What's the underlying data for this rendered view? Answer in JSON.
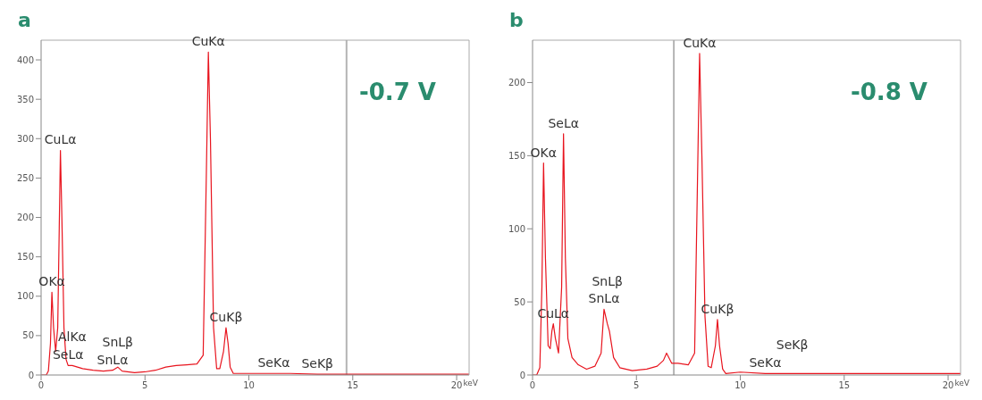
{
  "chart_data": [
    {
      "type": "line",
      "title": "a",
      "xlabel": "keV",
      "xlim": [
        0,
        20.6
      ],
      "xticks": [
        0,
        5,
        10,
        15,
        20
      ],
      "ylim": [
        0,
        425
      ],
      "yticks": [
        0,
        50,
        100,
        150,
        200,
        250,
        300,
        350,
        400
      ],
      "grid": false,
      "legend": false,
      "marker": "none",
      "line_style": "solid",
      "series": [
        {
          "color": "#e8141e",
          "x": [
            0,
            0.25,
            0.35,
            0.45,
            0.52,
            0.6,
            0.7,
            0.8,
            0.93,
            1.0,
            1.1,
            1.2,
            1.3,
            1.5,
            2.0,
            2.5,
            3.0,
            3.44,
            3.69,
            3.9,
            4.5,
            5.0,
            5.5,
            6.0,
            6.5,
            7.0,
            7.5,
            7.8,
            7.95,
            8.05,
            8.15,
            8.3,
            8.45,
            8.6,
            8.78,
            8.9,
            9.0,
            9.1,
            9.25,
            10,
            11.2,
            12,
            13.3,
            14,
            16,
            18,
            20,
            20.6
          ],
          "values": [
            0,
            0,
            5,
            40,
            105,
            60,
            30,
            60,
            285,
            200,
            60,
            20,
            12,
            12,
            8,
            6,
            5,
            6,
            10,
            5,
            3,
            4,
            6,
            10,
            12,
            13,
            14,
            25,
            250,
            410,
            300,
            60,
            8,
            8,
            30,
            60,
            40,
            10,
            2,
            2,
            2,
            2,
            1,
            1,
            1,
            1,
            1,
            1
          ]
        }
      ],
      "ref_lines": [
        {
          "axis": "x",
          "value": 14.7,
          "color": "#b4b4b4"
        }
      ],
      "annotations": [
        "-0.7 V",
        {
          "text": "CuKα",
          "x": 8.05,
          "y": 410
        },
        {
          "text": "CuLα",
          "x": 0.93,
          "y": 285
        },
        {
          "text": "OKα",
          "x": 0.52,
          "y": 105
        },
        {
          "text": "SeLα",
          "x": 1.3,
          "y": 12
        },
        {
          "text": "AlKα",
          "x": 1.5,
          "y": 12
        },
        {
          "text": "SnLα",
          "x": 3.44,
          "y": 6
        },
        {
          "text": "SnLβ",
          "x": 3.69,
          "y": 10
        },
        {
          "text": "CuKβ",
          "x": 8.9,
          "y": 60
        },
        {
          "text": "SeKα",
          "x": 11.2,
          "y": 2
        },
        {
          "text": "SeKβ",
          "x": 13.3,
          "y": 1
        }
      ]
    },
    {
      "type": "line",
      "title": "b",
      "xlabel": "keV",
      "xlim": [
        0,
        20.6
      ],
      "xticks": [
        0,
        5,
        10,
        15,
        20
      ],
      "ylim": [
        0,
        229
      ],
      "yticks": [
        0,
        50,
        100,
        150,
        200
      ],
      "grid": false,
      "legend": false,
      "marker": "none",
      "line_style": "solid",
      "series": [
        {
          "color": "#e8141e",
          "x": [
            0,
            0.2,
            0.35,
            0.45,
            0.53,
            0.62,
            0.75,
            0.85,
            0.93,
            1.0,
            1.1,
            1.25,
            1.4,
            1.49,
            1.58,
            1.7,
            1.9,
            2.2,
            2.6,
            3.0,
            3.3,
            3.44,
            3.6,
            3.7,
            3.9,
            4.2,
            4.8,
            5.5,
            6.0,
            6.3,
            6.45,
            6.7,
            7.0,
            7.5,
            7.8,
            7.9,
            8.04,
            8.15,
            8.3,
            8.45,
            8.6,
            8.8,
            8.9,
            9.0,
            9.15,
            9.3,
            10,
            11.2,
            12,
            12.5,
            14,
            16,
            18,
            20,
            20.6
          ],
          "values": [
            0,
            0,
            5,
            60,
            145,
            80,
            20,
            18,
            30,
            35,
            25,
            15,
            60,
            165,
            80,
            25,
            12,
            7,
            4,
            6,
            15,
            45,
            35,
            30,
            12,
            5,
            3,
            4,
            6,
            10,
            15,
            8,
            8,
            7,
            15,
            100,
            220,
            150,
            40,
            6,
            5,
            20,
            38,
            20,
            4,
            1,
            2,
            1,
            1,
            1,
            1,
            1,
            1,
            1,
            1
          ]
        }
      ],
      "ref_lines": [
        {
          "axis": "x",
          "value": 6.8,
          "color": "#b4b4b4"
        }
      ],
      "annotations": [
        "-0.8 V",
        {
          "text": "CuKα",
          "x": 8.04,
          "y": 220
        },
        {
          "text": "SeLα",
          "x": 1.49,
          "y": 165
        },
        {
          "text": "OKα",
          "x": 0.53,
          "y": 145
        },
        {
          "text": "CuLα",
          "x": 1.0,
          "y": 35
        },
        {
          "text": "SnLα",
          "x": 3.44,
          "y": 45
        },
        {
          "text": "SnLβ",
          "x": 3.6,
          "y": 35
        },
        {
          "text": "CuKβ",
          "x": 8.9,
          "y": 38
        },
        {
          "text": "SeKα",
          "x": 11.2,
          "y": 1
        },
        {
          "text": "SeKβ",
          "x": 12.5,
          "y": 1
        }
      ]
    }
  ]
}
